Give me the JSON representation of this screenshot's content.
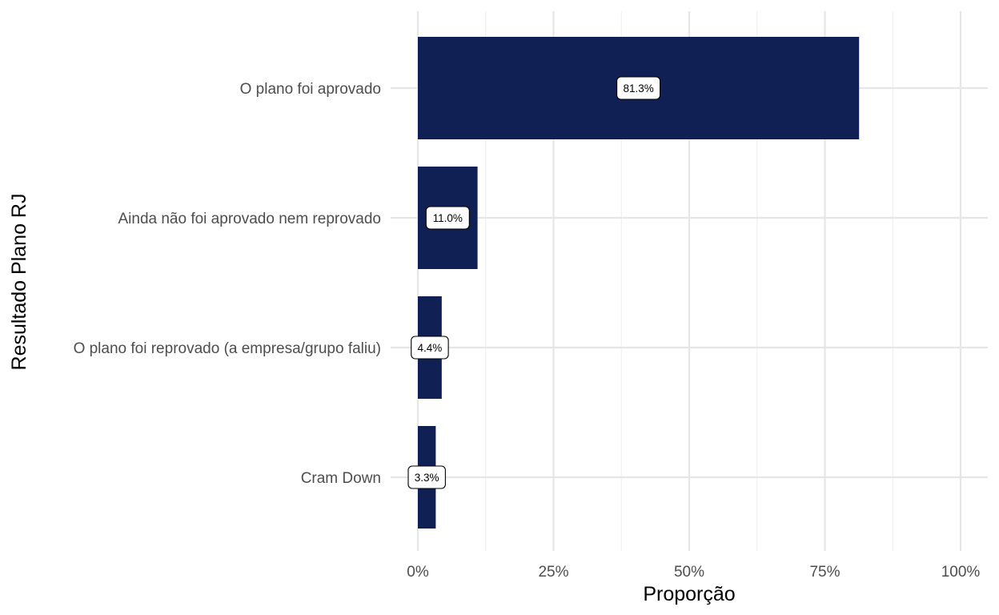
{
  "chart_data": {
    "type": "bar",
    "orientation": "horizontal",
    "categories": [
      "O plano foi aprovado",
      "Ainda não foi aprovado nem reprovado",
      "O plano foi reprovado (a empresa/grupo faliu)",
      "Cram Down"
    ],
    "values": [
      81.3,
      11.0,
      4.4,
      3.3
    ],
    "data_labels": [
      "81.3%",
      "11.0%",
      "4.4%",
      "3.3%"
    ],
    "xlabel": "Proporção",
    "ylabel": "Resultado Plano RJ",
    "xlim": [
      0,
      100
    ],
    "x_ticks": [
      0,
      25,
      50,
      75,
      100
    ],
    "x_tick_labels": [
      "0%",
      "25%",
      "50%",
      "75%",
      "100%"
    ],
    "grid": true,
    "legend": "none",
    "colors": {
      "bar": "#101f54"
    }
  }
}
